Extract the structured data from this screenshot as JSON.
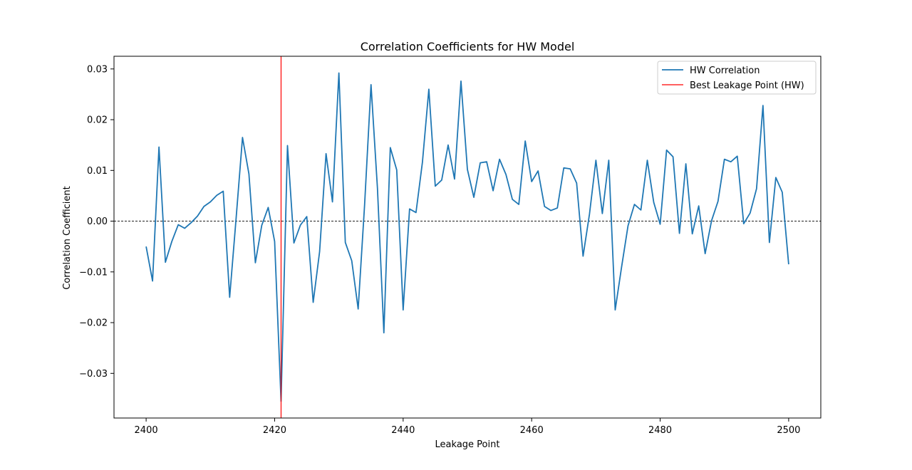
{
  "chart_data": {
    "type": "line",
    "title": "Correlation Coefficients for HW Model",
    "xlabel": "Leakage Point",
    "ylabel": "Correlation Coefficient",
    "xlim": [
      2395,
      2505
    ],
    "ylim": [
      -0.0388,
      0.0325
    ],
    "x_ticks": [
      2400,
      2420,
      2440,
      2460,
      2480,
      2500
    ],
    "y_ticks": [
      -0.03,
      -0.02,
      -0.01,
      0.0,
      0.01,
      0.02,
      0.03
    ],
    "x_tick_labels": [
      "2400",
      "2420",
      "2440",
      "2460",
      "2480",
      "2500"
    ],
    "y_tick_labels": [
      "−0.03",
      "−0.02",
      "−0.01",
      "0.00",
      "0.01",
      "0.02",
      "0.03"
    ],
    "zero_line": 0,
    "legend_position": "top-right",
    "series": [
      {
        "name": "HW Correlation",
        "color": "#1f77b4",
        "x": [
          2400,
          2401,
          2402,
          2403,
          2404,
          2405,
          2406,
          2407,
          2408,
          2409,
          2410,
          2411,
          2412,
          2413,
          2414,
          2415,
          2416,
          2417,
          2418,
          2419,
          2420,
          2421,
          2422,
          2423,
          2424,
          2425,
          2426,
          2427,
          2428,
          2429,
          2430,
          2431,
          2432,
          2433,
          2434,
          2435,
          2436,
          2437,
          2438,
          2439,
          2440,
          2441,
          2442,
          2443,
          2444,
          2445,
          2446,
          2447,
          2448,
          2449,
          2450,
          2451,
          2452,
          2453,
          2454,
          2455,
          2456,
          2457,
          2458,
          2459,
          2460,
          2461,
          2462,
          2463,
          2464,
          2465,
          2466,
          2467,
          2468,
          2469,
          2470,
          2471,
          2472,
          2473,
          2474,
          2475,
          2476,
          2477,
          2478,
          2479,
          2480,
          2481,
          2482,
          2483,
          2484,
          2485,
          2486,
          2487,
          2488,
          2489,
          2490,
          2491,
          2492,
          2493,
          2494,
          2495,
          2496,
          2497,
          2498,
          2499,
          2500
        ],
        "values": [
          -0.005,
          -0.0118,
          0.0146,
          -0.0081,
          -0.004,
          -0.0007,
          -0.0014,
          -0.0003,
          0.001,
          0.0029,
          0.0038,
          0.0051,
          0.0059,
          -0.015,
          0.0005,
          0.0165,
          0.0093,
          -0.0082,
          -0.0008,
          0.0027,
          -0.004,
          -0.0355,
          0.0149,
          -0.0043,
          -0.0008,
          0.0009,
          -0.016,
          -0.006,
          0.0133,
          0.0038,
          0.0292,
          -0.0042,
          -0.0078,
          -0.0173,
          0.0032,
          0.0269,
          0.0065,
          -0.022,
          0.0145,
          0.0101,
          -0.0175,
          0.0024,
          0.0017,
          0.0116,
          0.026,
          0.0069,
          0.0081,
          0.015,
          0.0083,
          0.0276,
          0.0102,
          0.0047,
          0.0115,
          0.0117,
          0.006,
          0.0122,
          0.0092,
          0.0043,
          0.0033,
          0.0158,
          0.0078,
          0.0099,
          0.0029,
          0.0021,
          0.0026,
          0.0105,
          0.0103,
          0.0075,
          -0.0069,
          0.0014,
          0.012,
          0.0015,
          0.012,
          -0.0175,
          -0.009,
          -0.0009,
          0.0033,
          0.0022,
          0.012,
          0.0037,
          -0.0006,
          0.014,
          0.0127,
          -0.0024,
          0.0113,
          -0.0025,
          0.003,
          -0.0064,
          0.0001,
          0.0039,
          0.0122,
          0.0117,
          0.0128,
          -0.0005,
          0.0016,
          0.0064,
          0.0228,
          -0.0042,
          0.0086,
          0.0057,
          -0.0085
        ]
      },
      {
        "name": "Best Leakage Point (HW)",
        "color": "#ff0000",
        "type": "vline",
        "x": 2421
      }
    ]
  }
}
